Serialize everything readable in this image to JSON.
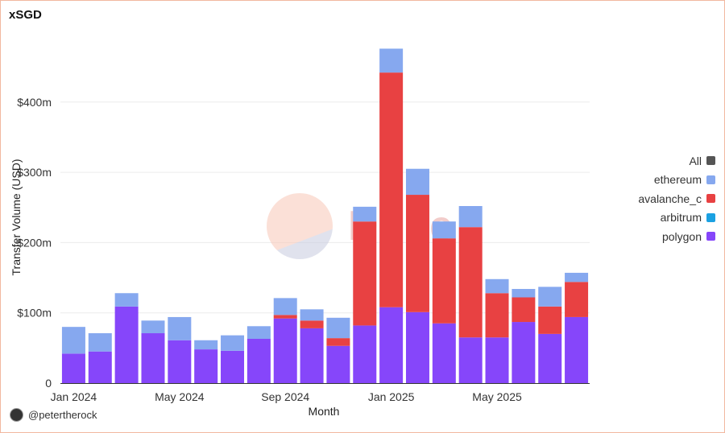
{
  "title": "xSGD",
  "author": "@petertherock",
  "watermark": "Dune",
  "chart_data": {
    "type": "bar",
    "stacked": true,
    "title": "xSGD",
    "xlabel": "Month",
    "ylabel": "Transfer Volume (USD)",
    "ylim": [
      0,
      460
    ],
    "yticks": [
      0,
      100,
      200,
      300,
      400
    ],
    "ytick_labels": [
      "0",
      "$100m",
      "$200m",
      "$300m",
      "$400m"
    ],
    "xtick_labels": [
      {
        "index": 0,
        "label": "Jan 2024"
      },
      {
        "index": 4,
        "label": "May 2024"
      },
      {
        "index": 8,
        "label": "Sep 2024"
      },
      {
        "index": 12,
        "label": "Jan 2025"
      },
      {
        "index": 16,
        "label": "May 2025"
      }
    ],
    "categories": [
      "2024-01",
      "2024-02",
      "2024-03",
      "2024-04",
      "2024-05",
      "2024-06",
      "2024-07",
      "2024-08",
      "2024-09",
      "2024-10",
      "2024-11",
      "2024-12",
      "2025-01",
      "2025-02",
      "2025-03",
      "2025-04",
      "2025-05",
      "2025-06",
      "2025-07",
      "2025-08"
    ],
    "grid": true,
    "legend_position": "right",
    "legend": [
      {
        "name": "All",
        "color": "#555555"
      },
      {
        "name": "ethereum",
        "color": "#86a8ef"
      },
      {
        "name": "avalanche_c",
        "color": "#e84142"
      },
      {
        "name": "arbitrum",
        "color": "#1ba1e2"
      },
      {
        "name": "polygon",
        "color": "#8646fa"
      }
    ],
    "series": [
      {
        "name": "polygon",
        "color": "#8646fa",
        "values": [
          42,
          45,
          109,
          71,
          61,
          48,
          46,
          63,
          92,
          78,
          53,
          82,
          108,
          101,
          85,
          65,
          65,
          87,
          70,
          94
        ]
      },
      {
        "name": "arbitrum",
        "color": "#1ba1e2",
        "values": [
          0,
          0,
          0,
          0,
          0,
          0,
          0,
          0,
          0,
          0,
          0,
          0,
          0,
          0,
          0,
          0,
          0,
          0,
          0,
          0
        ]
      },
      {
        "name": "avalanche_c",
        "color": "#e84142",
        "values": [
          0,
          0,
          0,
          0,
          0,
          0,
          0,
          0,
          5,
          11,
          11,
          148,
          334,
          167,
          121,
          157,
          63,
          35,
          39,
          50
        ]
      },
      {
        "name": "ethereum",
        "color": "#86a8ef",
        "values": [
          38,
          26,
          19,
          18,
          33,
          13,
          22,
          18,
          24,
          16,
          29,
          21,
          34,
          37,
          24,
          30,
          20,
          12,
          28,
          13
        ]
      }
    ]
  }
}
